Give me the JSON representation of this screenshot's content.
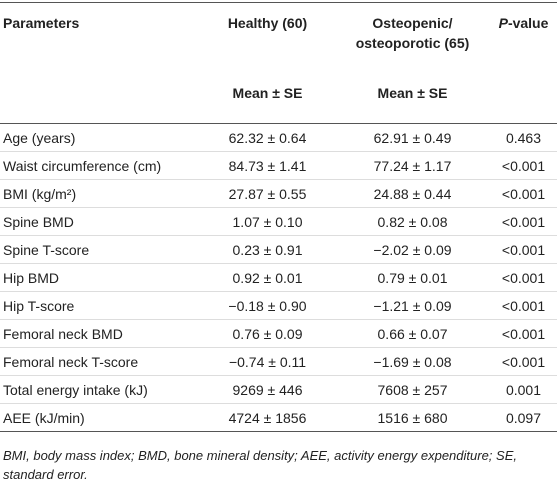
{
  "header": {
    "parameters": "Parameters",
    "healthy": "Healthy (60)",
    "osteo": "Osteopenic/ osteoporotic (65)",
    "p_italic": "P",
    "p_rest": "-value",
    "mean_healthy": "Mean ± SE",
    "mean_osteo": "Mean ± SE"
  },
  "table": {
    "rows": [
      [
        "Age (years)",
        "62.32 ± 0.64",
        "62.91 ± 0.49",
        "0.463"
      ],
      [
        "Waist circumference (cm)",
        "84.73 ± 1.41",
        "77.24 ± 1.17",
        "<0.001"
      ],
      [
        "BMI (kg/m²)",
        "27.87 ± 0.55",
        "24.88 ± 0.44",
        "<0.001"
      ],
      [
        "Spine BMD",
        "1.07 ± 0.10",
        "0.82 ± 0.08",
        "<0.001"
      ],
      [
        "Spine T-score",
        "0.23 ± 0.91",
        "−2.02 ± 0.09",
        "<0.001"
      ],
      [
        "Hip BMD",
        "0.92 ± 0.01",
        "0.79 ± 0.01",
        "<0.001"
      ],
      [
        "Hip T-score",
        "−0.18 ± 0.90",
        "−1.21 ± 0.09",
        "<0.001"
      ],
      [
        "Femoral neck BMD",
        "0.76 ± 0.09",
        "0.66 ± 0.07",
        "<0.001"
      ],
      [
        "Femoral neck T-score",
        "−0.74 ± 0.11",
        "−1.69 ± 0.08",
        "<0.001"
      ],
      [
        "Total energy intake (kJ)",
        "9269 ± 446",
        "7608 ± 257",
        "0.001"
      ],
      [
        "AEE (kJ/min)",
        "4724 ± 1856",
        "1516 ± 680",
        "0.097"
      ]
    ]
  },
  "footnote": "BMI, body mass index; BMD, bone mineral density; AEE, activity energy expenditure; SE, standard error."
}
